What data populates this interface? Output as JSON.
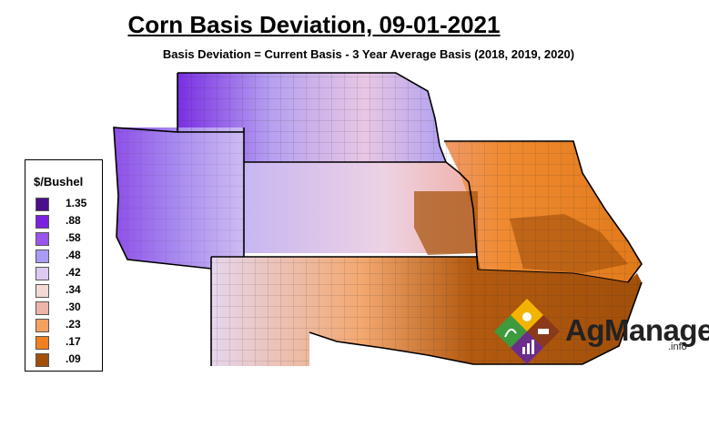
{
  "title": "Corn Basis Deviation, 09-01-2021",
  "subtitle": "Basis Deviation = Current Basis - 3 Year Average Basis (2018, 2019, 2020)",
  "legend": {
    "title": "$/Bushel",
    "items": [
      {
        "label": "1.35",
        "color": "#4b0f8c"
      },
      {
        "label": ".88",
        "color": "#7a22e0"
      },
      {
        "label": ".58",
        "color": "#9a55ee"
      },
      {
        "label": ".48",
        "color": "#a99cf2"
      },
      {
        "label": ".42",
        "color": "#dccaf4"
      },
      {
        "label": ".34",
        "color": "#f4d8d4"
      },
      {
        "label": ".30",
        "color": "#efb4a8"
      },
      {
        "label": ".23",
        "color": "#f2a160"
      },
      {
        "label": ".17",
        "color": "#f08020"
      },
      {
        "label": ".09",
        "color": "#a14f0a"
      }
    ]
  },
  "logo": {
    "name": "AgManager",
    "suffix": ".info"
  }
}
